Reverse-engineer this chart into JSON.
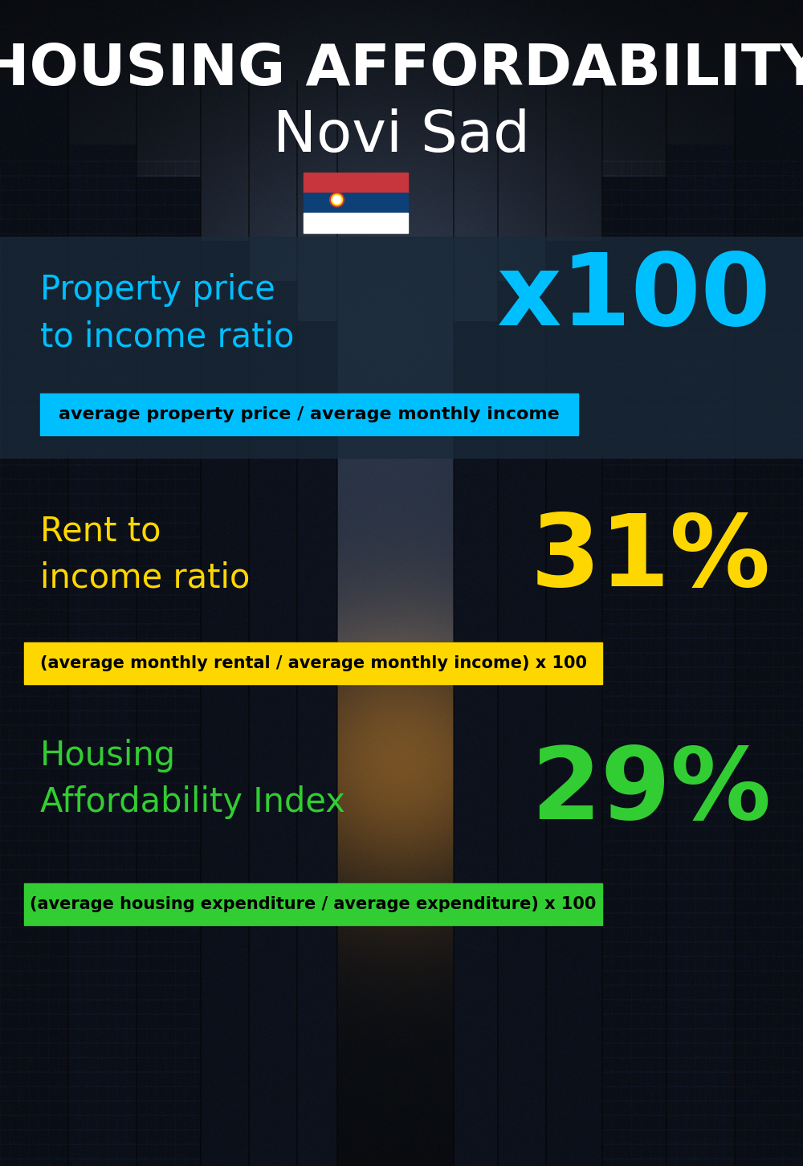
{
  "title_line1": "HOUSING AFFORDABILITY",
  "title_line2": "Novi Sad",
  "bg_color": "#060d14",
  "section1_label": "Property price\nto income ratio",
  "section1_value": "x100",
  "section1_label_color": "#00bfff",
  "section1_value_color": "#00bfff",
  "section1_bar_text": "average property price / average monthly income",
  "section1_bar_bg": "#00bfff",
  "section2_label": "Rent to\nincome ratio",
  "section2_value": "31%",
  "section2_label_color": "#ffd700",
  "section2_value_color": "#ffd700",
  "section2_bar_text": "(average monthly rental / average monthly income) x 100",
  "section2_bar_bg": "#ffd700",
  "section3_label": "Housing\nAffordability Index",
  "section3_value": "29%",
  "section3_label_color": "#32cd32",
  "section3_value_color": "#32cd32",
  "section3_bar_text": "(average housing expenditure / average expenditure) x 100",
  "section3_bar_bg": "#32cd32"
}
